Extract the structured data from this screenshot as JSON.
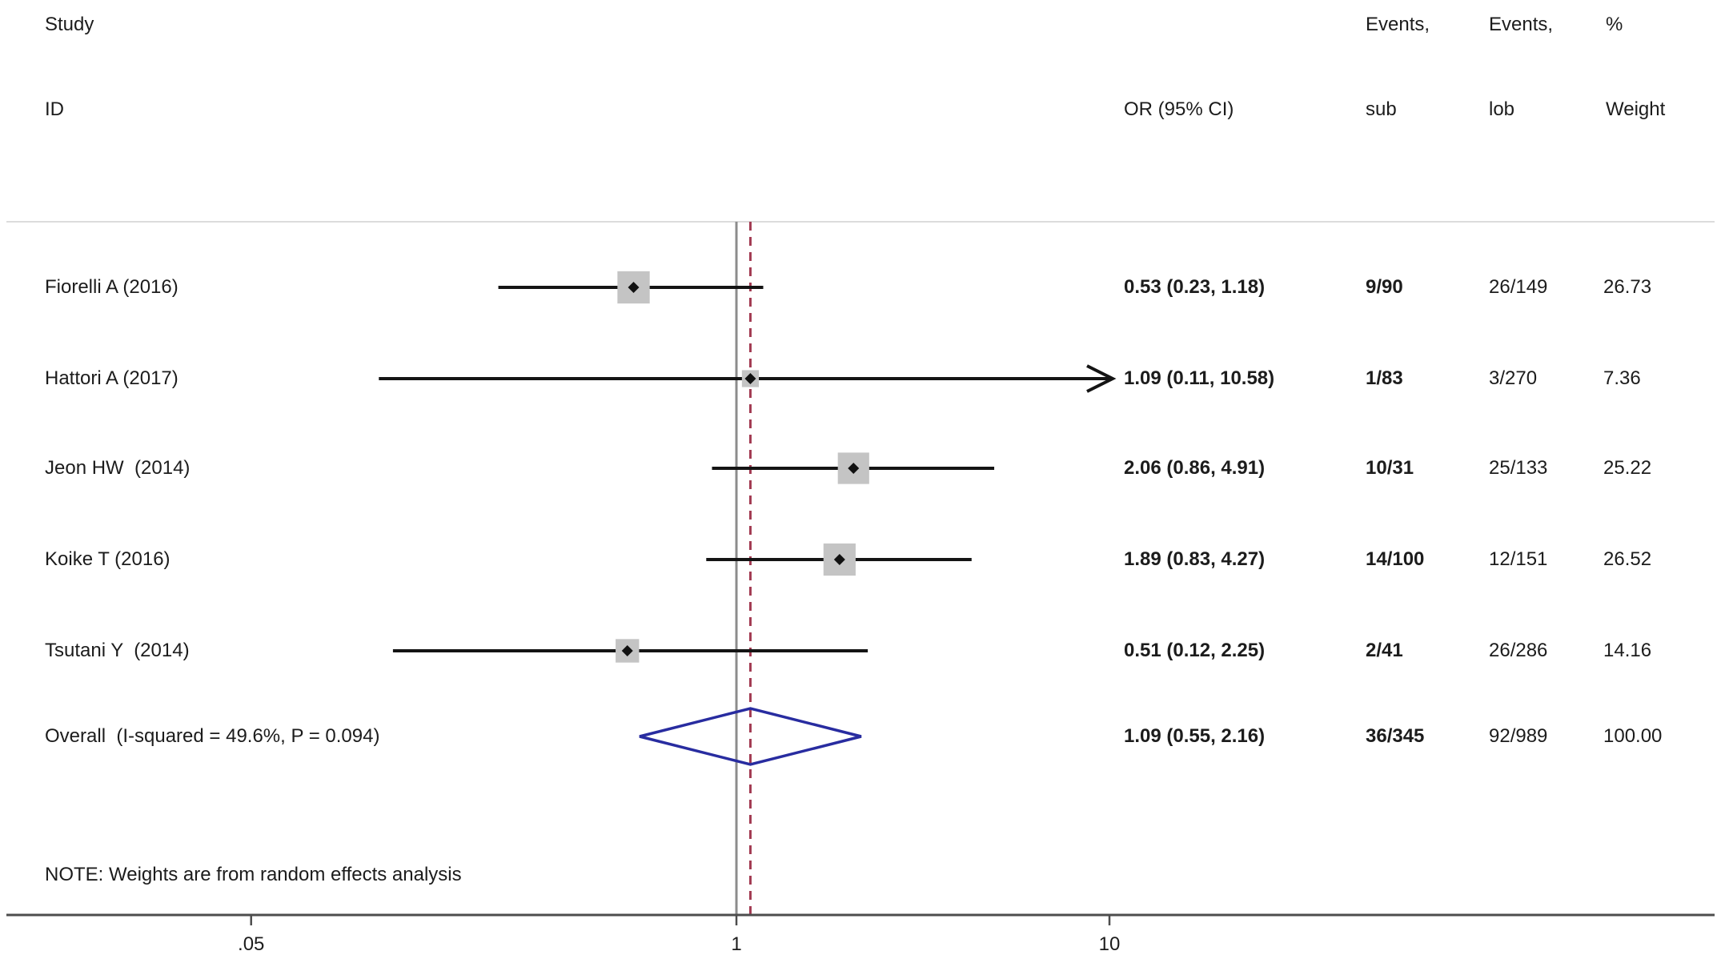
{
  "header": {
    "study": [
      "Study",
      "ID"
    ],
    "or": "OR (95% CI)",
    "events_sub": [
      "Events,",
      "sub"
    ],
    "events_lob": [
      "Events,",
      "lob"
    ],
    "weight": [
      "%",
      "Weight"
    ]
  },
  "note": "NOTE: Weights are from random effects analysis",
  "chart_data": {
    "type": "forest",
    "x_scale": "log10",
    "xlim": [
      0.05,
      10
    ],
    "x_ticks": [
      {
        "value": 0.05,
        "label": ".05"
      },
      {
        "value": 1,
        "label": "1"
      },
      {
        "value": 10,
        "label": "10"
      }
    ],
    "null_line_value": 1,
    "overall_marker_value": 1.09,
    "studies": [
      {
        "id": "Fiorelli A (2016)",
        "or": 0.53,
        "ci_low": 0.23,
        "ci_high": 1.18,
        "or_label": "0.53 (0.23, 1.18)",
        "events_sub": "9/90",
        "events_lob": "26/149",
        "weight": 26.73,
        "weight_label": "26.73"
      },
      {
        "id": "Hattori A (2017)",
        "or": 1.09,
        "ci_low": 0.11,
        "ci_high": 10.58,
        "or_label": "1.09 (0.11, 10.58)",
        "events_sub": "1/83",
        "events_lob": "3/270",
        "weight": 7.36,
        "weight_label": "7.36"
      },
      {
        "id": "Jeon HW  (2014)",
        "or": 2.06,
        "ci_low": 0.86,
        "ci_high": 4.91,
        "or_label": "2.06 (0.86, 4.91)",
        "events_sub": "10/31",
        "events_lob": "25/133",
        "weight": 25.22,
        "weight_label": "25.22"
      },
      {
        "id": "Koike T (2016)",
        "or": 1.89,
        "ci_low": 0.83,
        "ci_high": 4.27,
        "or_label": "1.89 (0.83, 4.27)",
        "events_sub": "14/100",
        "events_lob": "12/151",
        "weight": 26.52,
        "weight_label": "26.52"
      },
      {
        "id": "Tsutani Y  (2014)",
        "or": 0.51,
        "ci_low": 0.12,
        "ci_high": 2.25,
        "or_label": "0.51 (0.12, 2.25)",
        "events_sub": "2/41",
        "events_lob": "26/286",
        "weight": 14.16,
        "weight_label": "14.16"
      }
    ],
    "overall": {
      "id": "Overall  (I-squared = 49.6%, P = 0.094)",
      "or": 1.09,
      "ci_low": 0.55,
      "ci_high": 2.16,
      "or_label": "1.09 (0.55, 2.16)",
      "events_sub": "36/345",
      "events_lob": "92/989",
      "weight_label": "100.00"
    }
  },
  "colors": {
    "text": "#1c1c1c",
    "ci_line": "#141414",
    "marker_square": "#c4c4c4",
    "marker_point": "#111111",
    "diamond_stroke": "#282ca0",
    "null_line": "#8c8c8c",
    "overall_dash_line": "#a23a52",
    "separator_line": "#dcdcdc",
    "axis_line": "#4d4d4d"
  }
}
